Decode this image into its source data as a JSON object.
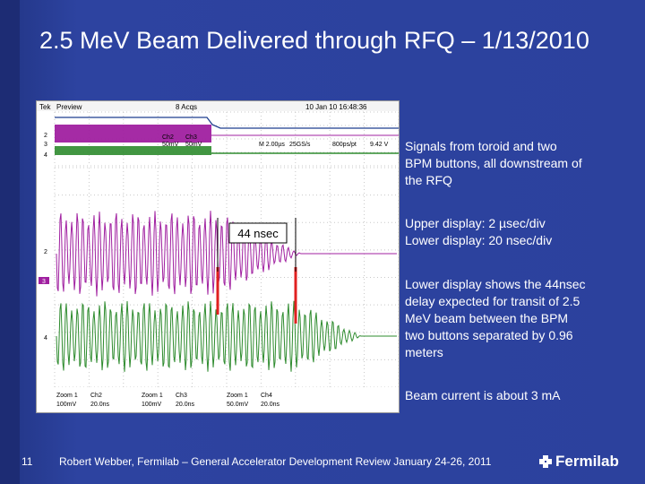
{
  "slide": {
    "title": "2.5 MeV Beam Delivered through RFQ – 1/13/2010",
    "page_number": "11",
    "footer": "Robert Webber, Fermilab – General Accelerator Development Review  January 24-26, 2011",
    "logo_text": "Fermilab"
  },
  "scope": {
    "header_left": "Tek",
    "header_mode": "Preview",
    "header_acq": "8 Acqs",
    "header_right": "10 Jan 10 16:48:36",
    "ch_markers": [
      "2",
      "3",
      "4",
      "2",
      "3",
      "4"
    ],
    "upper_readout": [
      "Ch2",
      "50mV",
      "Ch3",
      "50mV",
      "M 2.00µs",
      "25GS/s",
      "800ps/pt",
      "9.42 V"
    ],
    "annotation": "44 nsec",
    "zoom_labels": [
      {
        "line1": "Zoom 1",
        "line2": "100mV",
        "ch": "Ch2",
        "time": "20.0ns"
      },
      {
        "line1": "Zoom 1",
        "line2": "100mV",
        "ch": "Ch3",
        "time": "20.0ns"
      },
      {
        "line1": "Zoom 1",
        "line2": "50.0mV",
        "ch": "Ch4",
        "time": "20.0ns"
      }
    ]
  },
  "bullets": [
    {
      "lines": [
        "Signals from toroid and two",
        "BPM buttons, all downstream of",
        "the RFQ"
      ]
    },
    {
      "lines": [
        "Upper display: 2 µsec/div",
        "Lower display:  20 nsec/div"
      ]
    },
    {
      "lines": [
        "Lower display shows the 44nsec",
        "delay expected for transit of  2.5",
        "MeV beam between the BPM",
        "two buttons separated by 0.96",
        "meters"
      ]
    },
    {
      "lines": [
        "Beam current is about 3 mA"
      ]
    }
  ],
  "colors": {
    "background": "#2c419d",
    "trace_blue": "#1f3f8f",
    "trace_purple": "#a020a0",
    "trace_green": "#2e8b2e",
    "marker_red": "#e02020"
  }
}
